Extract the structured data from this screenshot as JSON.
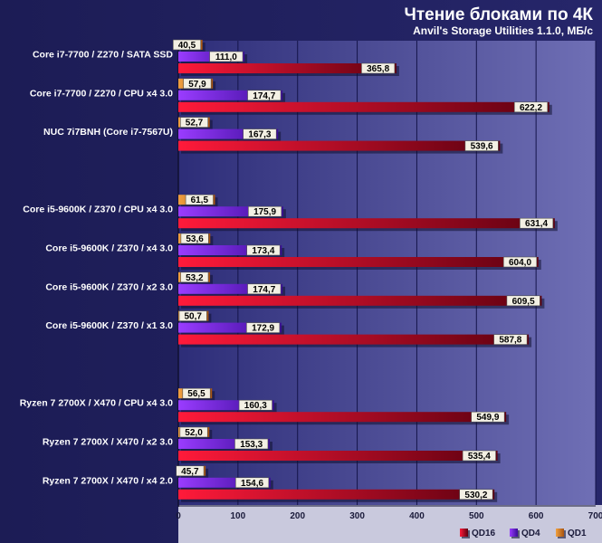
{
  "chart_data": {
    "type": "bar",
    "orientation": "horizontal",
    "title": "Чтение блоками по 4К",
    "subtitle": "Anvil's Storage Utilities 1.1.0, МБ/с",
    "categories": [
      "Core i7-7700 / Z270 / SATA SSD",
      "Core i7-7700 / Z270 / CPU x4 3.0",
      "NUC 7i7BNH (Core i7-7567U)",
      "",
      "Core i5-9600K / Z370 / CPU x4 3.0",
      "Core i5-9600K / Z370 / x4 3.0",
      "Core i5-9600K / Z370 / x2 3.0",
      "Core i5-9600K / Z370 / x1 3.0",
      "",
      "Ryzen 7 2700X / X470 / CPU x4 3.0",
      "Ryzen 7 2700X / X470 / x2 3.0",
      "Ryzen 7 2700X / X470 / x4 2.0"
    ],
    "series": [
      {
        "name": "QD1",
        "color": "#e08020",
        "values": [
          40.5,
          57.9,
          52.7,
          null,
          61.5,
          53.6,
          53.2,
          50.7,
          null,
          56.5,
          52.0,
          45.7
        ],
        "labels": [
          "40,5",
          "57,9",
          "52,7",
          null,
          "61,5",
          "53,6",
          "53,2",
          "50,7",
          null,
          "56,5",
          "52,0",
          "45,7"
        ]
      },
      {
        "name": "QD4",
        "color": "#7a1ee8",
        "values": [
          111.0,
          174.7,
          167.3,
          null,
          175.9,
          173.4,
          174.7,
          172.9,
          null,
          160.3,
          153.3,
          154.6
        ],
        "labels": [
          "111,0",
          "174,7",
          "167,3",
          null,
          "175,9",
          "173,4",
          "174,7",
          "172,9",
          null,
          "160,3",
          "153,3",
          "154,6"
        ]
      },
      {
        "name": "QD16",
        "color": "#e0102a",
        "values": [
          365.8,
          622.2,
          539.6,
          null,
          631.4,
          604.0,
          609.5,
          587.8,
          null,
          549.9,
          535.4,
          530.2
        ],
        "labels": [
          "365,8",
          "622,2",
          "539,6",
          null,
          "631,4",
          "604,0",
          "609,5",
          "587,8",
          null,
          "549,9",
          "535,4",
          "530,2"
        ]
      }
    ],
    "xlim": [
      0,
      700
    ],
    "xticks": [
      0,
      100,
      200,
      300,
      400,
      500,
      600,
      700
    ],
    "grid": true,
    "legend_placement": "bottom-right",
    "legend_order": [
      "QD16",
      "QD4",
      "QD1"
    ]
  }
}
